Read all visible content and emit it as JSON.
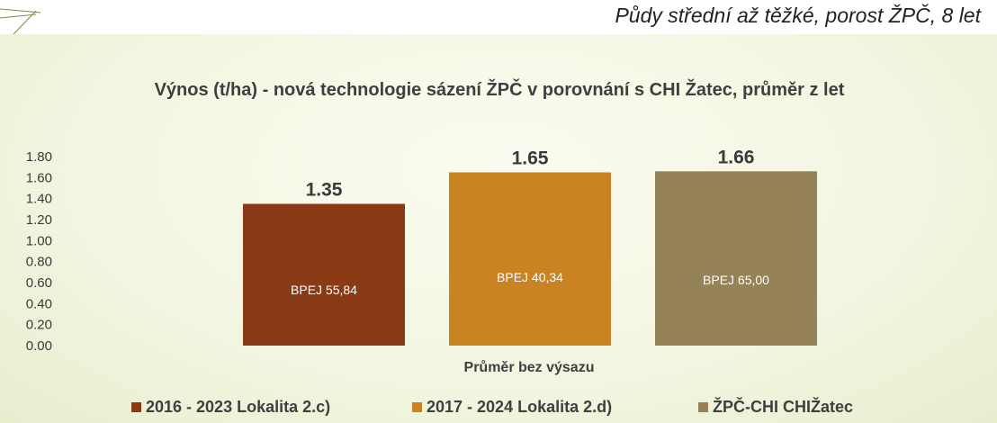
{
  "slide": {
    "subtitle": "Půdy střední až těžké, porost ŽPČ, 8 let"
  },
  "colors": {
    "series": [
      "#8b3a16",
      "#c98323",
      "#958256"
    ],
    "axis_text": "#3a3a3a",
    "title_text": "#3f3f3f"
  },
  "chart_data": {
    "type": "bar",
    "title": "Výnos (t/ha) - nová technologie sázení ŽPČ v  porovnání s CHI Žatec, průměr z let",
    "categories": [
      "Průměr bez výsazu"
    ],
    "xlabel": "Průměr bez výsazu",
    "ylabel": "",
    "ylim": [
      0,
      1.8
    ],
    "yticks": [
      "0.00",
      "0.20",
      "0.40",
      "0.60",
      "0.80",
      "1.00",
      "1.20",
      "1.40",
      "1.60",
      "1.80"
    ],
    "grid": false,
    "legend_position": "bottom",
    "series": [
      {
        "name": "2016 - 2023 Lokalita 2.c)",
        "values": [
          1.35
        ],
        "value_label": "1.35",
        "inner_label": "BPEJ 55,84"
      },
      {
        "name": "2017 - 2024 Lokalita 2.d)",
        "values": [
          1.65
        ],
        "value_label": "1.65",
        "inner_label": "BPEJ 40,34"
      },
      {
        "name": "ŽPČ-CHI CHIŽatec",
        "values": [
          1.66
        ],
        "value_label": "1.66",
        "inner_label": "BPEJ 65,00"
      }
    ]
  }
}
